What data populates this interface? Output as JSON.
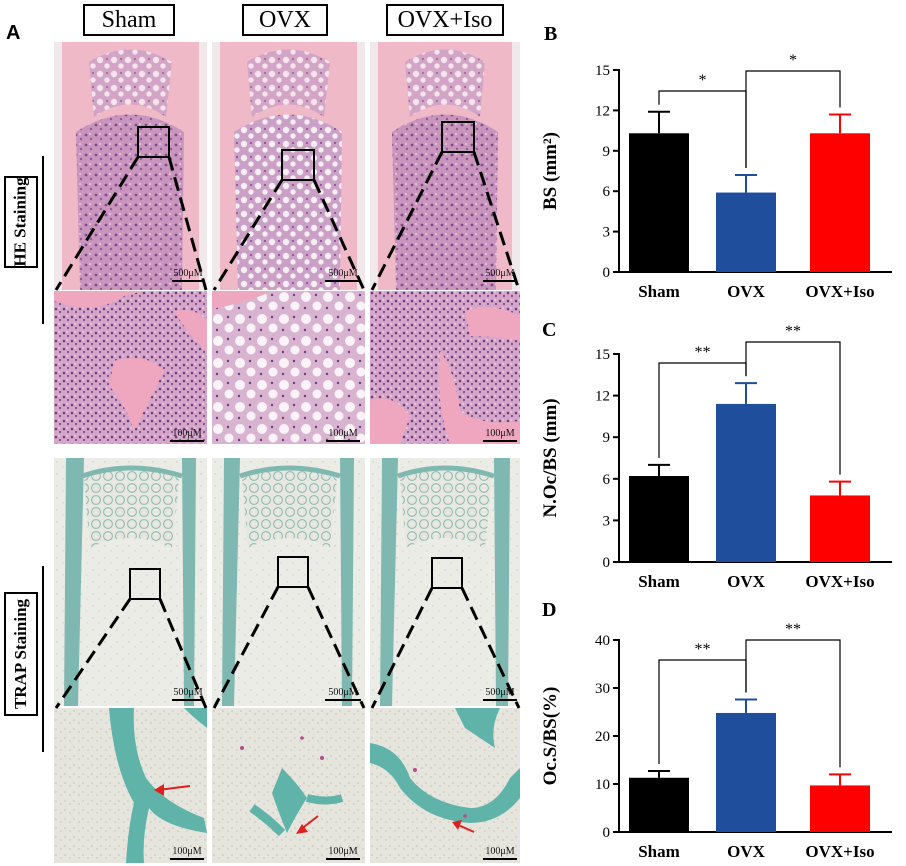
{
  "panel_a": {
    "letter": "A",
    "groups": [
      "Sham",
      "OVX",
      "OVX+Iso"
    ],
    "row_labels": {
      "he": "HE Staining",
      "trap": "TRAP Staining"
    },
    "scale_overview": "500μM",
    "scale_zoom": "100μM"
  },
  "chart_data": [
    {
      "type": "bar",
      "panel": "B",
      "categories": [
        "Sham",
        "OVX",
        "OVX+Iso"
      ],
      "values": [
        10.3,
        5.9,
        10.3
      ],
      "errors": [
        1.6,
        1.3,
        1.4
      ],
      "colors": [
        "#000000",
        "#1f4e9c",
        "#ff0000"
      ],
      "ylabel": "BS (mm²)",
      "ylim": [
        0,
        15
      ],
      "yticks": [
        "0",
        "3",
        "6",
        "9",
        "12",
        "15"
      ],
      "significance": [
        {
          "from": 0,
          "to": 1,
          "label": "*"
        },
        {
          "from": 1,
          "to": 2,
          "label": "*"
        }
      ]
    },
    {
      "type": "bar",
      "panel": "C",
      "categories": [
        "Sham",
        "OVX",
        "OVX+Iso"
      ],
      "values": [
        6.2,
        11.4,
        4.8
      ],
      "errors": [
        0.8,
        1.5,
        1.0
      ],
      "colors": [
        "#000000",
        "#1f4e9c",
        "#ff0000"
      ],
      "ylabel": "N.Oc/BS (mm)",
      "ylim": [
        0,
        15
      ],
      "yticks": [
        "0",
        "3",
        "6",
        "9",
        "12",
        "15"
      ],
      "significance": [
        {
          "from": 0,
          "to": 1,
          "label": "**"
        },
        {
          "from": 1,
          "to": 2,
          "label": "**"
        }
      ]
    },
    {
      "type": "bar",
      "panel": "D",
      "categories": [
        "Sham",
        "OVX",
        "OVX+Iso"
      ],
      "values": [
        11.3,
        24.8,
        9.7
      ],
      "errors": [
        1.4,
        2.8,
        2.3
      ],
      "colors": [
        "#000000",
        "#1f4e9c",
        "#ff0000"
      ],
      "ylabel": "Oc.S/BS(%)",
      "ylim": [
        0,
        40
      ],
      "yticks": [
        "0",
        "10",
        "20",
        "30",
        "40"
      ],
      "significance": [
        {
          "from": 0,
          "to": 1,
          "label": "**"
        },
        {
          "from": 1,
          "to": 2,
          "label": "**"
        }
      ]
    }
  ]
}
